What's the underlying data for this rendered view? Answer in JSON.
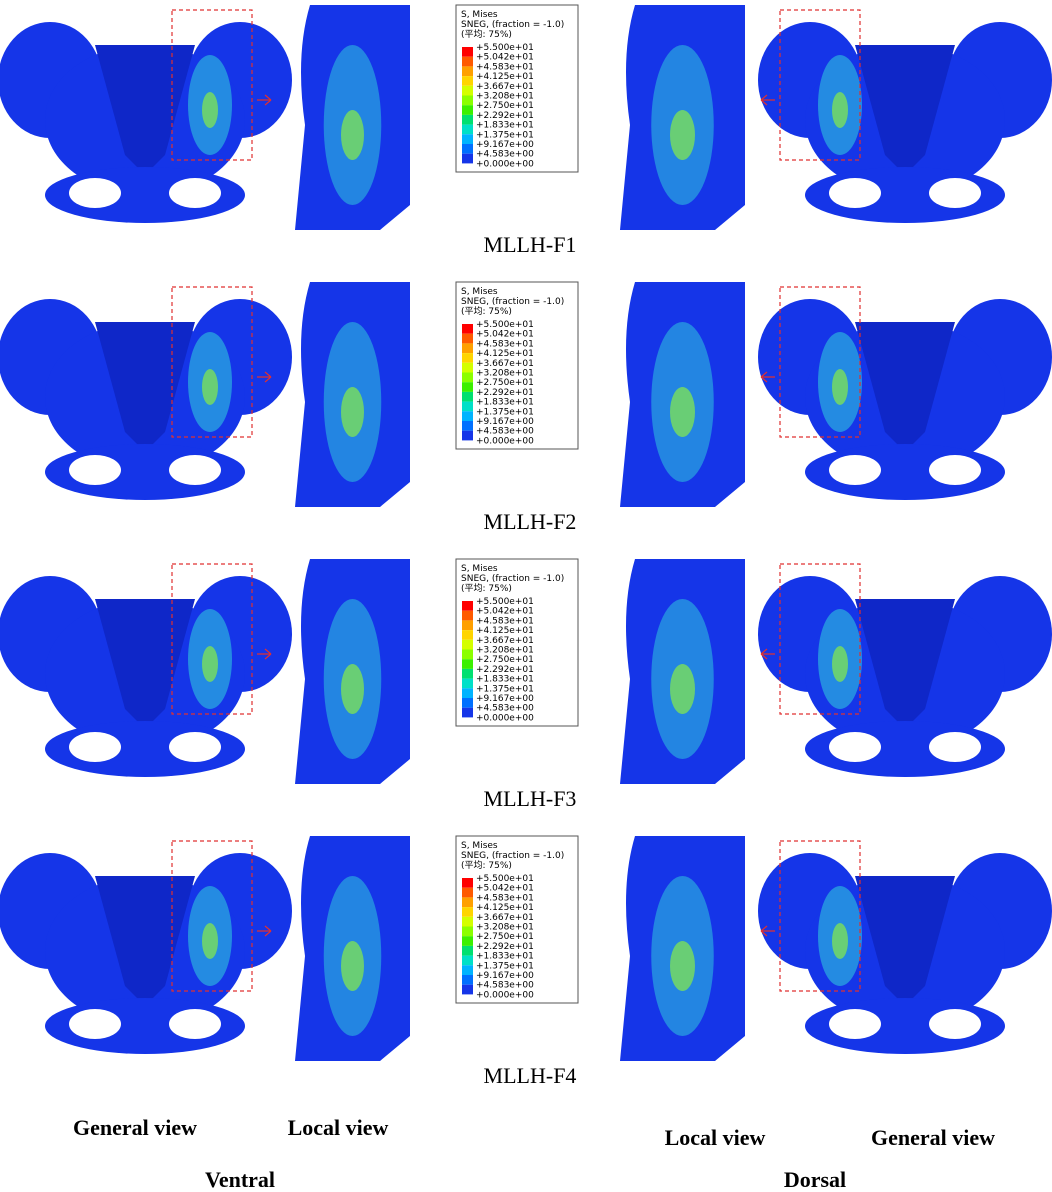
{
  "rows": [
    {
      "label": "MLLH-F1",
      "legend": {
        "lines": [
          "S, Mises",
          "SNEG, (fraction = -1.0)",
          "(平均: 75%)"
        ],
        "values": [
          "+5.500e+01",
          "+5.042e+01",
          "+4.583e+01",
          "+4.125e+01",
          "+3.667e+01",
          "+3.208e+01",
          "+2.750e+01",
          "+2.292e+01",
          "+1.833e+01",
          "+1.375e+01",
          "+9.167e+00",
          "+4.583e+00",
          "+0.000e+00"
        ]
      }
    },
    {
      "label": "MLLH-F2",
      "legend": {
        "lines": [
          "S, Mises",
          "SNEG, (fraction = -1.0)",
          "(平均: 75%)"
        ],
        "values": [
          "+5.500e+01",
          "+5.042e+01",
          "+4.583e+01",
          "+4.125e+01",
          "+3.667e+01",
          "+3.208e+01",
          "+2.750e+01",
          "+2.292e+01",
          "+1.833e+01",
          "+1.375e+01",
          "+9.167e+00",
          "+4.583e+00",
          "+0.000e+00"
        ]
      }
    },
    {
      "label": "MLLH-F3",
      "legend": {
        "lines": [
          "S, Mises",
          "SNEG, (fraction = -1.0)",
          "(平均: 75%)"
        ],
        "values": [
          "+5.500e+01",
          "+5.042e+01",
          "+4.583e+01",
          "+4.125e+01",
          "+3.667e+01",
          "+3.208e+01",
          "+2.750e+01",
          "+2.292e+01",
          "+1.833e+01",
          "+1.375e+01",
          "+9.167e+00",
          "+4.583e+00",
          "+0.000e+00"
        ]
      }
    },
    {
      "label": "MLLH-F4",
      "legend": {
        "lines": [
          "S, Mises",
          "SNEG, (fraction = -1.0)",
          "(平均: 75%)"
        ],
        "values": [
          "+5.500e+01",
          "+5.042e+01",
          "+4.583e+01",
          "+4.125e+01",
          "+3.667e+01",
          "+3.208e+01",
          "+2.750e+01",
          "+2.292e+01",
          "+1.833e+01",
          "+1.375e+01",
          "+9.167e+00",
          "+4.583e+00",
          "+0.000e+00"
        ]
      }
    }
  ],
  "captions": {
    "ventral": {
      "general": "General view",
      "local": "Local view",
      "title": "Ventral"
    },
    "dorsal": {
      "local": "Local view",
      "general": "General view",
      "title": "Dorsal"
    }
  }
}
